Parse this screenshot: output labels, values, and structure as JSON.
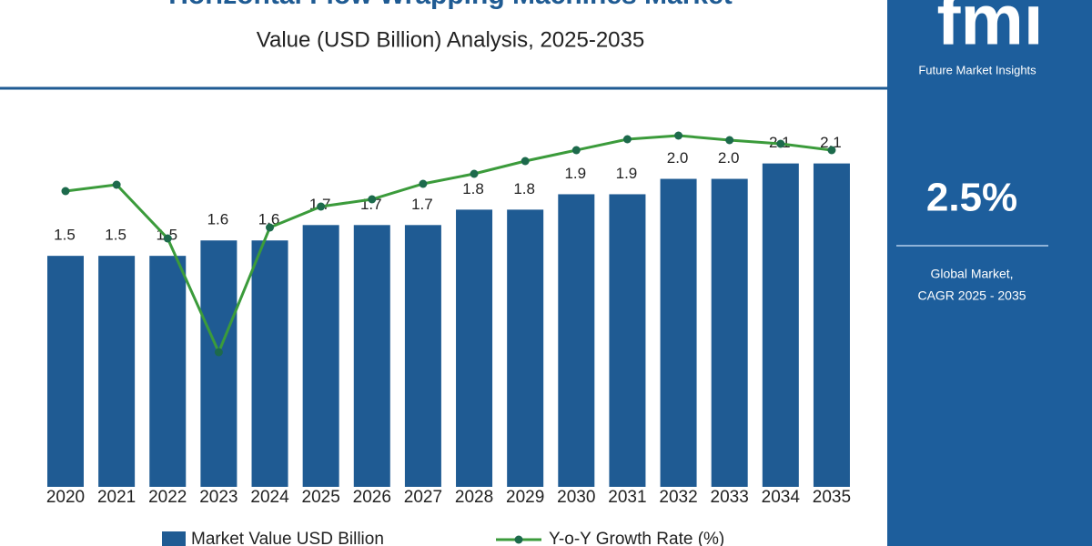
{
  "chart_data": {
    "type": "bar",
    "title": "Horizontal Flow Wrapping Machines Market",
    "subtitle": "Value (USD Billion) Analysis, 2025-2035",
    "categories": [
      "2020",
      "2021",
      "2022",
      "2023",
      "2024",
      "2025",
      "2026",
      "2027",
      "2028",
      "2029",
      "2030",
      "2031",
      "2032",
      "2033",
      "2034",
      "2035"
    ],
    "series": [
      {
        "name": "Market Value USD Billion",
        "type": "bar",
        "color": "#1f5b93",
        "values": [
          1.5,
          1.5,
          1.5,
          1.6,
          1.6,
          1.7,
          1.7,
          1.7,
          1.8,
          1.8,
          1.9,
          1.9,
          2.0,
          2.0,
          2.1,
          2.1
        ],
        "value_labels": [
          "1.5",
          "1.5",
          "1.5",
          "1.6",
          "1.6",
          "1.7",
          "1.7",
          "1.7",
          "1.8",
          "1.8",
          "1.9",
          "1.9",
          "2.0",
          "2.0",
          "2.1",
          "2.1"
        ]
      },
      {
        "name": "Y-o-Y Growth Rate (%)",
        "type": "line",
        "axis": "y2",
        "color": "#3b9b3b",
        "marker_color": "#1d6a4c",
        "values": [
          1.95,
          2.02,
          1.43,
          0.18,
          1.55,
          1.78,
          1.86,
          2.03,
          2.14,
          2.28,
          2.4,
          2.52,
          2.56,
          2.51,
          2.47,
          2.4
        ]
      }
    ],
    "ylim": [
      0,
      2.6
    ],
    "y2lim": [
      -1.3,
      3.1
    ],
    "legend": "bottom"
  },
  "brand": {
    "logo": "fmi",
    "name": "Future Market Insights"
  },
  "highlight": {
    "value": "2.5%",
    "label": [
      "Global Market,",
      "CAGR 2025 - 2035"
    ]
  }
}
